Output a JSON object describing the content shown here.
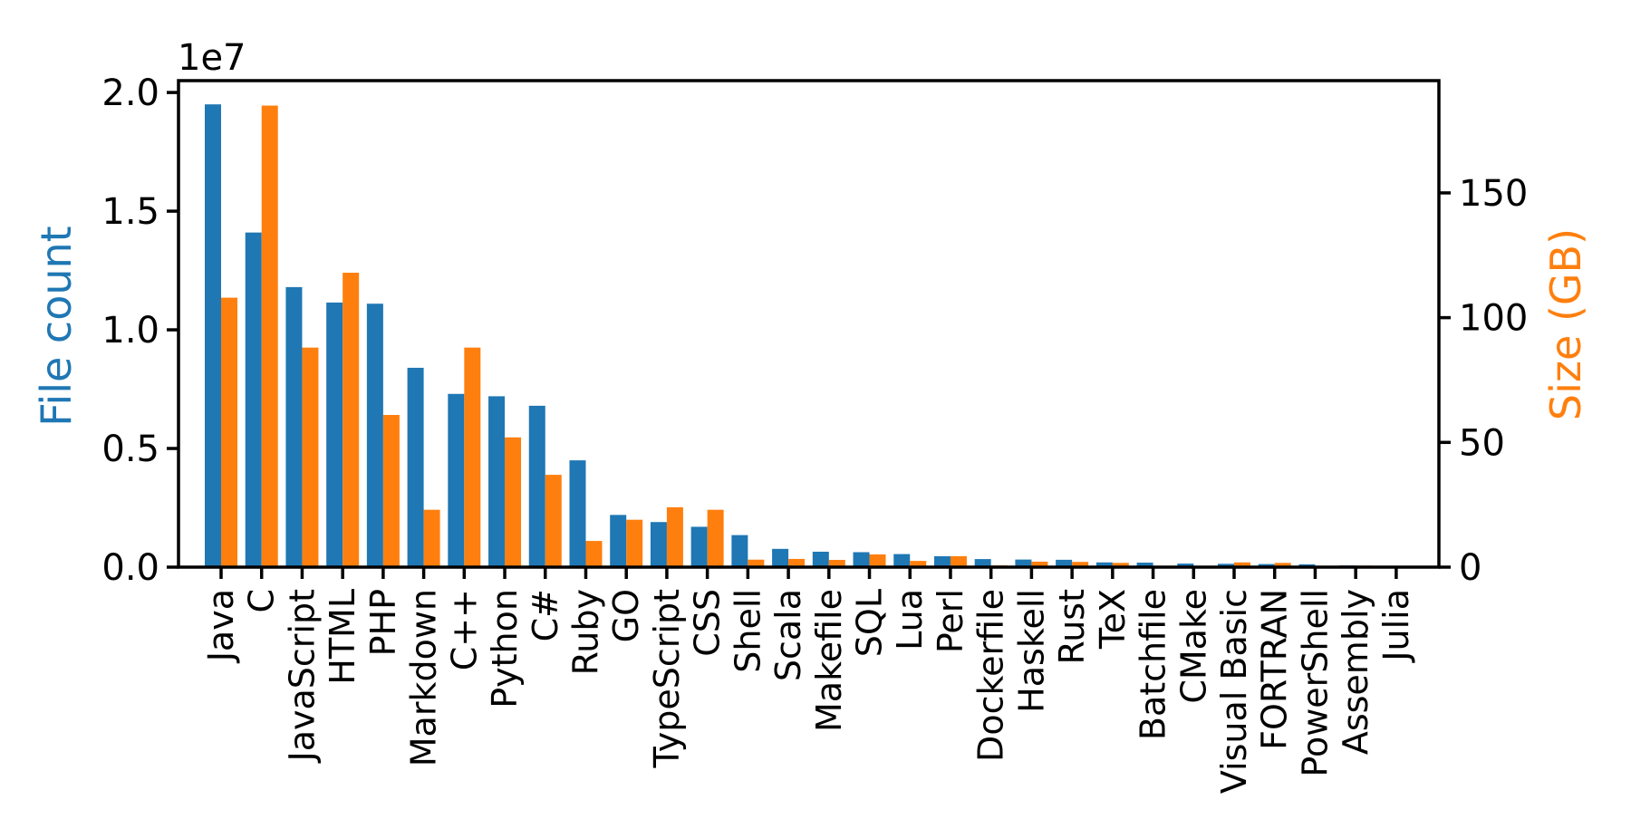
{
  "figure": {
    "background": "#ffffff"
  },
  "chart_data": {
    "type": "bar",
    "title": "",
    "grid": false,
    "legend": "none",
    "categories": [
      "Java",
      "C",
      "JavaScript",
      "HTML",
      "PHP",
      "Markdown",
      "C++",
      "Python",
      "C#",
      "Ruby",
      "GO",
      "TypeScript",
      "CSS",
      "Shell",
      "Scala",
      "Makefile",
      "SQL",
      "Lua",
      "Perl",
      "Dockerfile",
      "Haskell",
      "Rust",
      "TeX",
      "Batchfile",
      "CMake",
      "Visual Basic",
      "FORTRAN",
      "PowerShell",
      "Assembly",
      "Julia"
    ],
    "series": [
      {
        "name": "File count",
        "axis": "left",
        "color": "#1f77b4",
        "values": [
          19500000,
          14100000,
          11800000,
          11150000,
          11100000,
          8400000,
          7300000,
          7200000,
          6800000,
          4500000,
          2200000,
          1900000,
          1700000,
          1350000,
          770000,
          650000,
          630000,
          550000,
          460000,
          340000,
          320000,
          310000,
          200000,
          190000,
          150000,
          140000,
          130000,
          120000,
          70000,
          50000
        ]
      },
      {
        "name": "Size (GB)",
        "axis": "right",
        "color": "#ff7f0e",
        "values": [
          108,
          185,
          88,
          118,
          61,
          23,
          88,
          52,
          37,
          10.5,
          19,
          24,
          23,
          3,
          3.3,
          2.9,
          5.1,
          2.5,
          4.4,
          0.7,
          2.2,
          2.1,
          1.7,
          0.25,
          0.25,
          1.9,
          1.7,
          0.35,
          0.6,
          0.2
        ]
      }
    ],
    "left_axis": {
      "label": "File count",
      "color": "#1f77b4",
      "offset_label": "1e7",
      "max": 20500000,
      "ticks": [
        0,
        5000000,
        10000000,
        15000000,
        20000000
      ],
      "tick_labels": [
        "0.0",
        "0.5",
        "1.0",
        "1.5",
        "2.0"
      ]
    },
    "right_axis": {
      "label": "Size (GB)",
      "color": "#ff7f0e",
      "max": 195,
      "ticks": [
        0,
        50,
        100,
        150
      ],
      "tick_labels": [
        "0",
        "50",
        "100",
        "150"
      ]
    },
    "x_axis": {
      "tick_label_rotation": -90
    }
  }
}
